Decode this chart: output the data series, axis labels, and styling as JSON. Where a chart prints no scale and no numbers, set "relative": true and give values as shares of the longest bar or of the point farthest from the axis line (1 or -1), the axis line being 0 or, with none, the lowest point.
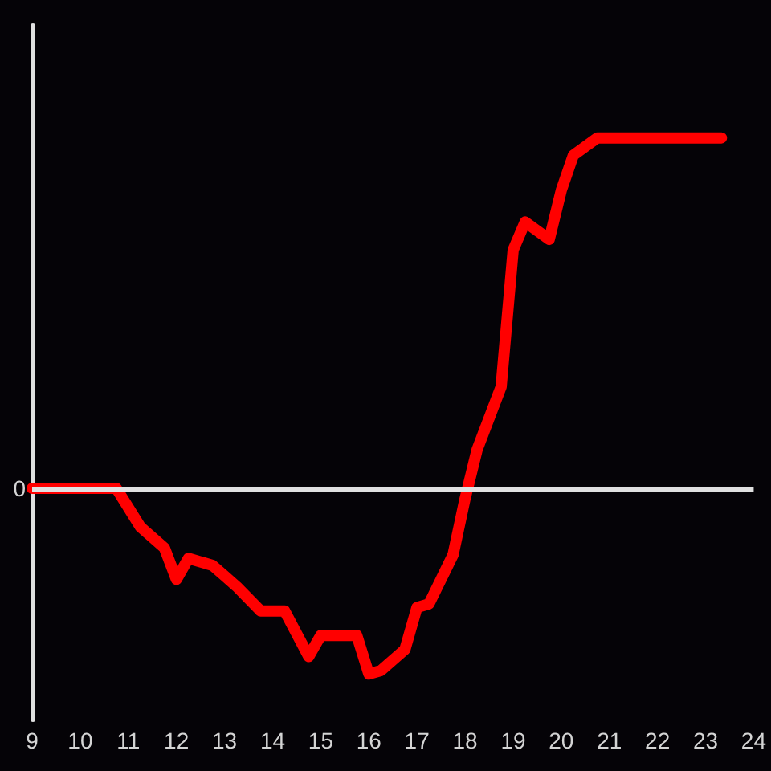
{
  "chart_data": {
    "type": "line",
    "relative": true,
    "x": [
      9,
      10.75,
      11.25,
      11.75,
      12.0,
      12.25,
      12.75,
      13.0,
      13.25,
      13.75,
      14.25,
      14.75,
      15.0,
      15.75,
      16.0,
      16.25,
      16.75,
      17.0,
      17.25,
      17.75,
      18.0,
      18.25,
      18.75,
      19.0,
      19.25,
      19.75,
      20.0,
      20.25,
      20.75,
      23.33
    ],
    "xlim": [
      9,
      24
    ],
    "xticks": [
      9,
      10,
      11,
      12,
      13,
      14,
      15,
      16,
      17,
      18,
      19,
      20,
      21,
      22,
      23,
      24
    ],
    "series": [
      {
        "color": "#ff0000",
        "values": [
          0,
          0,
          -0.11,
          -0.17,
          -0.26,
          -0.2,
          -0.22,
          -0.25,
          -0.28,
          -0.35,
          -0.35,
          -0.48,
          -0.42,
          -0.42,
          -0.53,
          -0.52,
          -0.46,
          -0.34,
          -0.33,
          -0.19,
          -0.03,
          0.11,
          0.29,
          0.68,
          0.76,
          0.71,
          0.85,
          0.95,
          1,
          1
        ]
      }
    ],
    "ref_lines": [
      {
        "axis": "y",
        "value": 0,
        "label": "0",
        "color": "#e0e0e0"
      }
    ],
    "marker": "none",
    "line_style": "solid"
  }
}
